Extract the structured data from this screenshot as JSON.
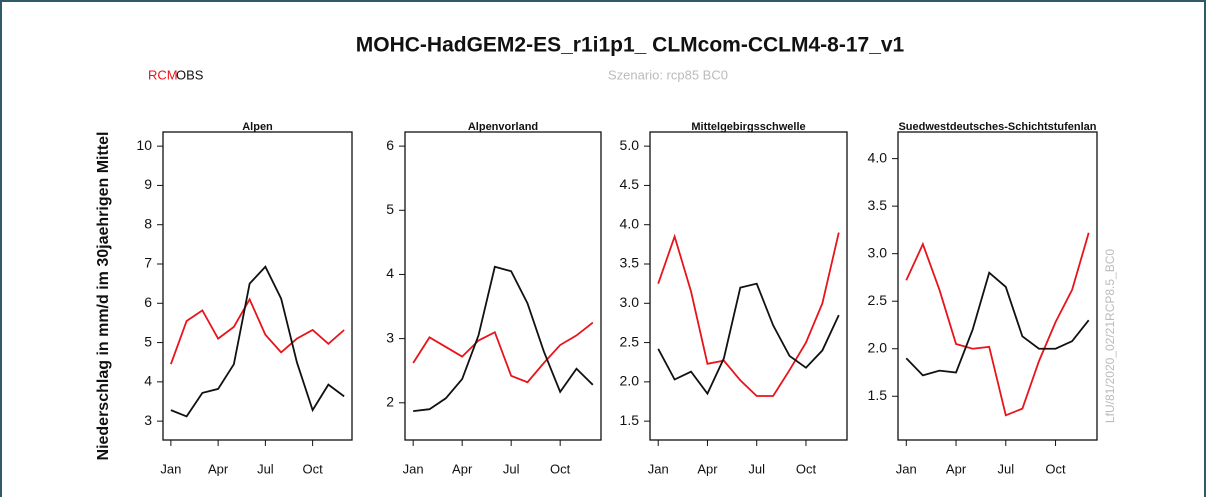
{
  "header": {
    "title": "MOHC-HadGEM2-ES_r1i1p1_ CLMcom-CCLM4-8-17_v1",
    "scenario": "Szenario: rcp85   BC0",
    "ylabel": "Niederschlag in mm/d im 30jaehrigen Mittel",
    "credit": "LfU/81/2020_02/21RCP8.5_BC0"
  },
  "chart_data": [
    {
      "type": "line",
      "title": "Alpen",
      "categories": [
        "Jan",
        null,
        null,
        "Apr",
        null,
        null,
        "Jul",
        null,
        null,
        "Oct",
        null,
        null
      ],
      "series": [
        {
          "name": "RCM",
          "color": "#e8141b",
          "values": [
            4.45,
            5.55,
            5.82,
            5.1,
            5.4,
            6.1,
            5.2,
            4.75,
            5.1,
            5.32,
            4.97,
            5.32
          ]
        },
        {
          "name": "OBS",
          "color": "#111111",
          "values": [
            3.28,
            3.12,
            3.72,
            3.82,
            4.45,
            6.5,
            6.93,
            6.12,
            4.5,
            3.28,
            3.93,
            3.63
          ]
        }
      ],
      "ylim": [
        2.52,
        10.36
      ],
      "yticks": [
        3,
        4,
        5,
        6,
        7,
        8,
        9,
        10
      ]
    },
    {
      "type": "line",
      "title": "Alpenvorland",
      "categories": [
        "Jan",
        null,
        null,
        "Apr",
        null,
        null,
        "Jul",
        null,
        null,
        "Oct",
        null,
        null
      ],
      "series": [
        {
          "color": "#e8141b",
          "values": [
            2.62,
            3.02,
            2.87,
            2.72,
            2.97,
            3.1,
            2.42,
            2.32,
            2.62,
            2.9,
            3.05,
            3.25
          ]
        },
        {
          "color": "#111111",
          "values": [
            1.87,
            1.9,
            2.07,
            2.37,
            3.05,
            4.12,
            4.05,
            3.55,
            2.8,
            2.17,
            2.53,
            2.28
          ]
        }
      ],
      "ylim": [
        1.42,
        6.22
      ],
      "yticks": [
        2,
        3,
        4,
        5,
        6
      ]
    },
    {
      "type": "line",
      "title": "Mittelgebirgsschwelle",
      "categories": [
        "Jan",
        null,
        null,
        "Apr",
        null,
        null,
        "Jul",
        null,
        null,
        "Oct",
        null,
        null
      ],
      "series": [
        {
          "color": "#e8141b",
          "values": [
            3.25,
            3.85,
            3.15,
            2.23,
            2.27,
            2.02,
            1.82,
            1.82,
            2.15,
            2.5,
            3.0,
            3.9
          ]
        },
        {
          "color": "#111111",
          "values": [
            2.42,
            2.03,
            2.13,
            1.85,
            2.3,
            3.2,
            3.25,
            2.72,
            2.33,
            2.18,
            2.4,
            2.85
          ]
        }
      ],
      "ylim": [
        1.26,
        5.18
      ],
      "yticks": [
        1.5,
        {
          "value": 2,
          "label": "2.0"
        },
        2.5,
        {
          "value": 3,
          "label": "3.0"
        },
        3.5,
        {
          "value": 4,
          "label": "4.0"
        },
        4.5,
        {
          "value": 5,
          "label": "5.0"
        }
      ]
    },
    {
      "type": "line",
      "title": "Suedwestdeutsches-Schichtstufenlan",
      "categories": [
        "Jan",
        null,
        null,
        "Apr",
        null,
        null,
        "Jul",
        null,
        null,
        "Oct",
        null,
        null
      ],
      "series": [
        {
          "color": "#e8141b",
          "values": [
            2.72,
            3.1,
            2.62,
            2.05,
            2.0,
            2.02,
            1.3,
            1.37,
            1.87,
            2.28,
            2.62,
            3.22
          ]
        },
        {
          "color": "#111111",
          "values": [
            1.9,
            1.72,
            1.77,
            1.75,
            2.2,
            2.8,
            2.65,
            2.13,
            2.0,
            2.0,
            2.08,
            2.3
          ]
        }
      ],
      "ylim": [
        1.04,
        4.28
      ],
      "yticks": [
        1.5,
        {
          "value": 2,
          "label": "2.0"
        },
        2.5,
        {
          "value": 3,
          "label": "3.0"
        },
        3.5,
        {
          "value": 4,
          "label": "4.0"
        }
      ]
    }
  ]
}
